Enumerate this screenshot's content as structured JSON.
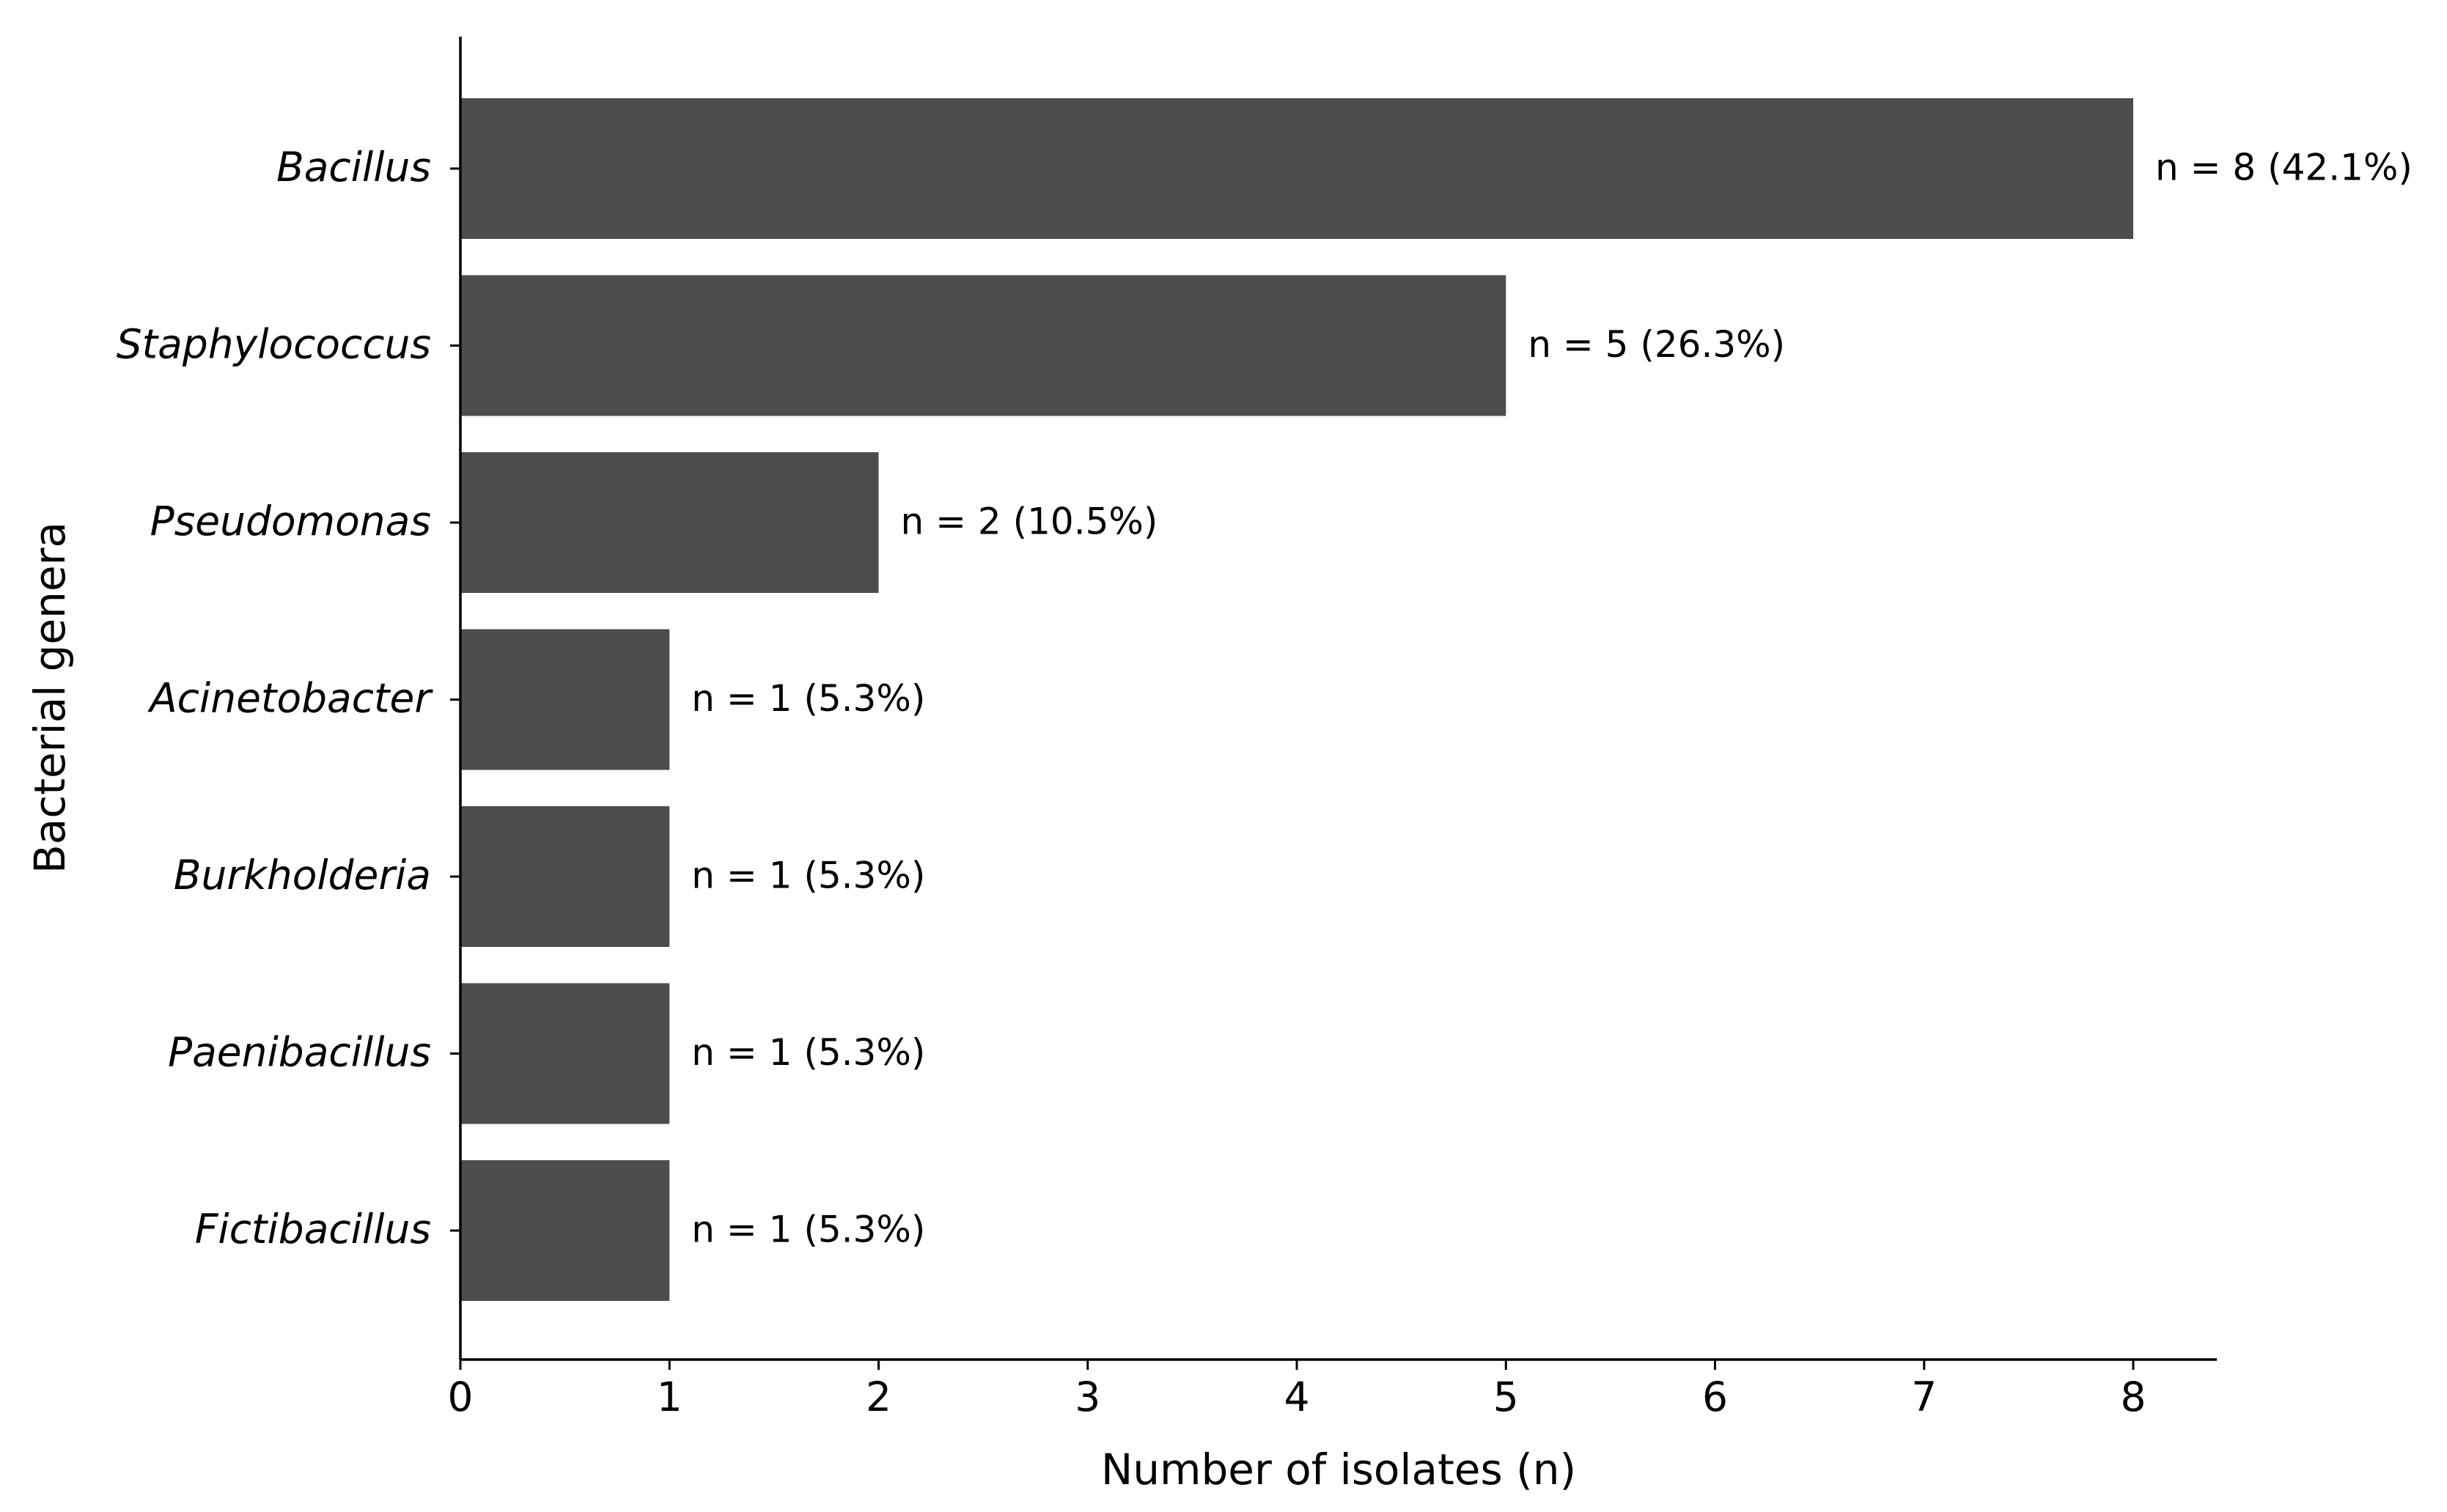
{
  "chart_data": {
    "type": "bar",
    "orientation": "horizontal",
    "categories": [
      "Bacillus",
      "Staphylococcus",
      "Pseudomonas",
      "Acinetobacter",
      "Burkholderia",
      "Paenibacillus",
      "Fictibacillus"
    ],
    "values": [
      8,
      5,
      2,
      1,
      1,
      1,
      1
    ],
    "data_labels": [
      "n = 8 (42.1%)",
      "n = 5 (26.3%)",
      "n = 2 (10.5%)",
      "n = 1 (5.3%)",
      "n = 1 (5.3%)",
      "n = 1 (5.3%)",
      "n = 1 (5.3%)"
    ],
    "xlabel": "Number of isolates (n)",
    "ylabel": "Bacterial genera",
    "xlim": [
      0,
      8.4
    ],
    "xticks": [
      "0",
      "1",
      "2",
      "3",
      "4",
      "5",
      "6",
      "7",
      "8"
    ],
    "grid": false,
    "bar_color": "#4d4d4d"
  }
}
